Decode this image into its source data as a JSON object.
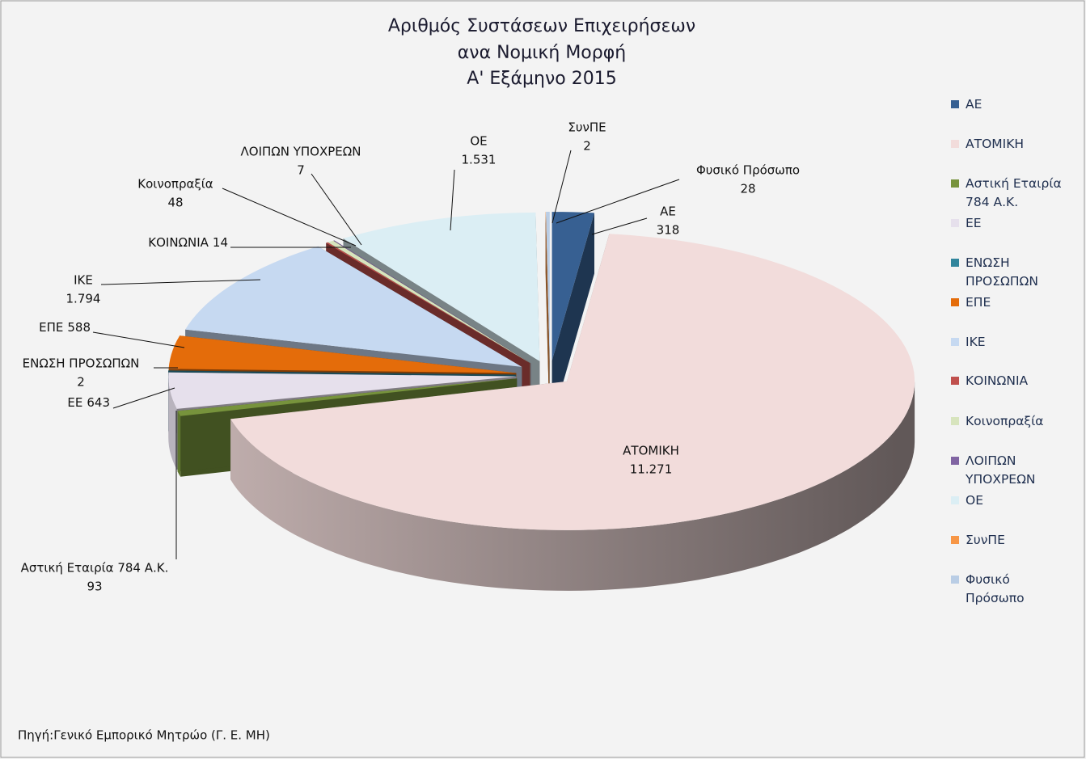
{
  "chart_data": {
    "type": "pie",
    "title": [
      "Αριθμός Συστάσεων Επιχειρήσεων",
      "ανα Νομική Μορφή",
      "Α' Εξάμηνο 2015"
    ],
    "categories": [
      "ΑΕ",
      "ΑΤΟΜΙΚΗ",
      "Αστική Εταιρία 784 Α.Κ.",
      "ΕΕ",
      "ΕΝΩΣΗ ΠΡΟΣΩΠΩΝ",
      "ΕΠΕ",
      "ΙΚΕ",
      "ΚΟΙΝΩΝΙΑ",
      "Κοινοπραξία",
      "ΛΟΙΠΩΝ ΥΠΟΧΡΕΩΝ",
      "ΟΕ",
      "ΣυνΠΕ",
      "Φυσικό Πρόσωπο"
    ],
    "values": [
      318,
      11271,
      93,
      643,
      2,
      588,
      1794,
      14,
      48,
      7,
      1531,
      2,
      28
    ],
    "value_labels": [
      "318",
      "11.271",
      "93",
      "643",
      "2",
      "588",
      "1.794",
      "14",
      "48",
      "7",
      "1.531",
      "2",
      "28"
    ],
    "colors": [
      "#376092",
      "#f2dcdb",
      "#77933c",
      "#e6e0ec",
      "#31859c",
      "#e46c0a",
      "#c6d9f1",
      "#c0504d",
      "#d7e4bd",
      "#8064a2",
      "#dbeef4",
      "#f79646",
      "#b9cde5"
    ],
    "legend": "right",
    "source": "Πηγή:Γενικό Εμπορικό Μητρώο  (Γ. Ε. ΜΗ)"
  }
}
